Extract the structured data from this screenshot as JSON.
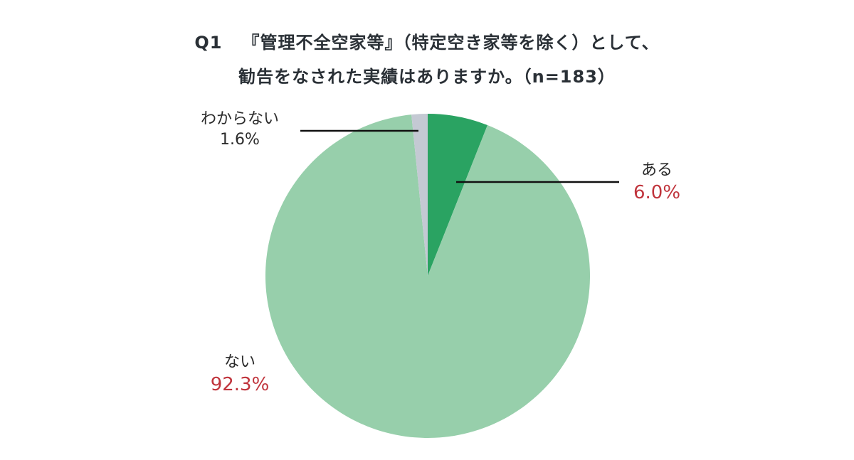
{
  "chart_data": {
    "type": "pie",
    "title": "Q1　『管理不全空家等』（特定空き家等を除く）として、勧告をなされた実績はありますか。（n=183）",
    "title_lines": [
      "『管理不全空家等』（特定空き家等を除く）として、",
      "勧告をなされた実績はありますか。（n=183）"
    ],
    "question_no": "Q1",
    "n": 183,
    "categories": [
      "ある",
      "ない",
      "わからない"
    ],
    "values": [
      6.0,
      92.3,
      1.6
    ],
    "unit": "%",
    "colors": [
      "#2aa362",
      "#97cfab",
      "#c4c9d3"
    ],
    "labels": [
      {
        "name": "ある",
        "pct": "6.0%"
      },
      {
        "name": "ない",
        "pct": "92.3%"
      },
      {
        "name": "わからない",
        "pct": "1.6%"
      }
    ],
    "legend": "none (callout labels)"
  },
  "colors": {
    "highlight_pct": "#c0343c",
    "text": "#2b2b2b",
    "leader_line": "#111111"
  }
}
